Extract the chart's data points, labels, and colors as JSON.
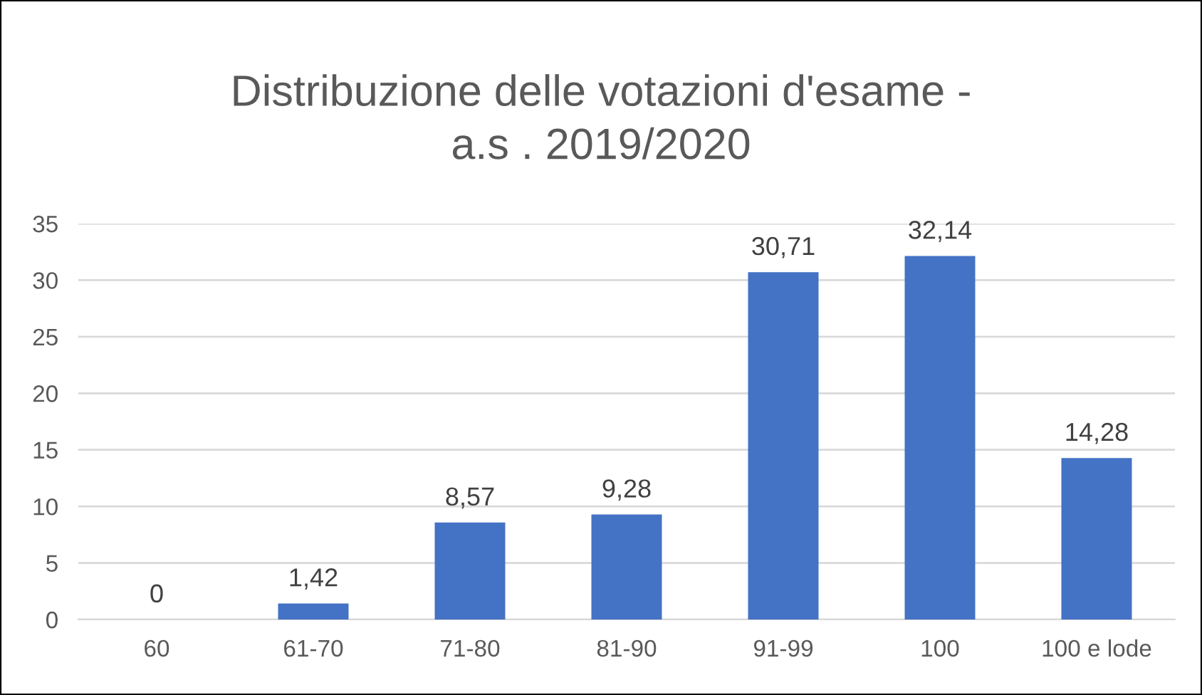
{
  "chart_data": {
    "type": "bar",
    "title": "Distribuzione delle votazioni d'esame -\na.s . 2019/2020",
    "categories": [
      "60",
      "61-70",
      "71-80",
      "81-90",
      "91-99",
      "100",
      "100 e lode"
    ],
    "values": [
      0,
      1.42,
      8.57,
      9.28,
      30.71,
      32.14,
      14.28
    ],
    "value_labels": [
      "0",
      "1,42",
      "8,57",
      "9,28",
      "30,71",
      "32,14",
      "14,28"
    ],
    "color": "#4472c4",
    "ylim": [
      0,
      35
    ],
    "yticks": [
      0,
      5,
      10,
      15,
      20,
      25,
      30,
      35
    ],
    "grid": "y",
    "legend": false
  }
}
